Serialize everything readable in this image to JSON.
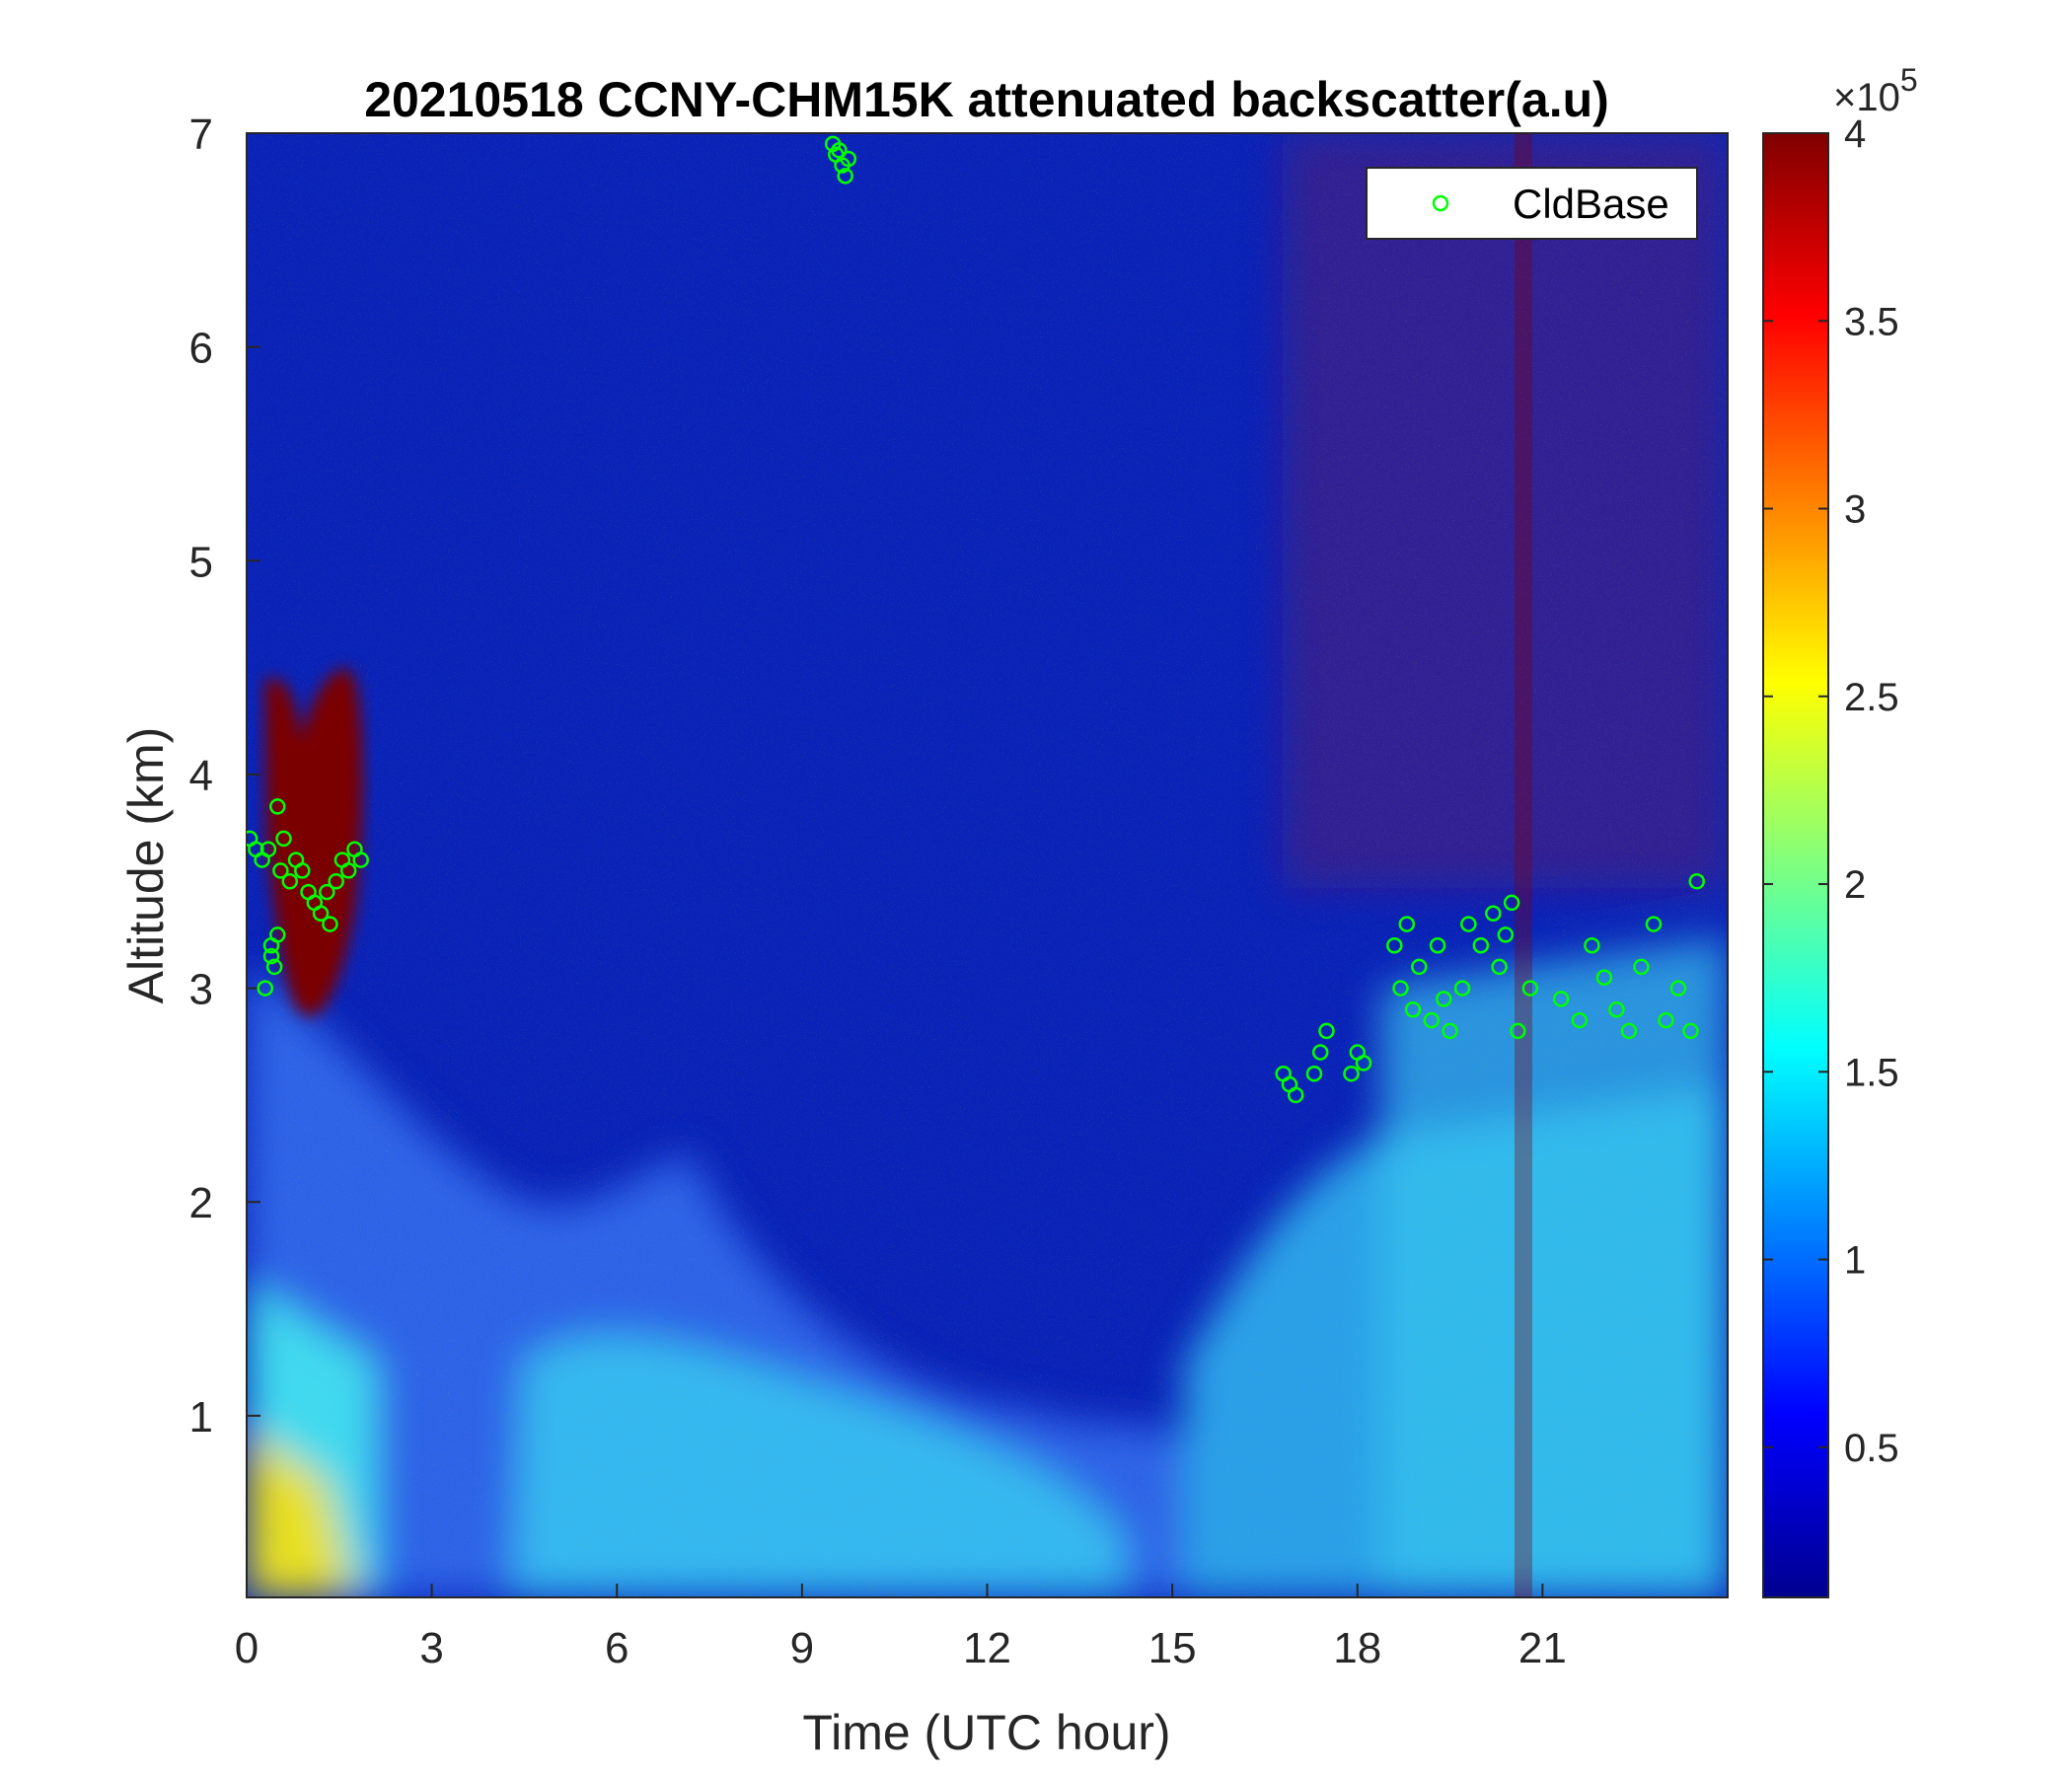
{
  "chart_data": {
    "type": "heatmap",
    "title": "20210518 CCNY-CHM15K attenuated backscatter(a.u)",
    "xlabel": "Time (UTC hour)",
    "ylabel": "Altitude (km)",
    "xlim": [
      0,
      24
    ],
    "ylim": [
      0.15,
      7
    ],
    "x_ticks": [
      0,
      3,
      6,
      9,
      12,
      15,
      18,
      21
    ],
    "x_tick_labels": [
      "0",
      "3",
      "6",
      "9",
      "12",
      "15",
      "18",
      "21"
    ],
    "y_ticks": [
      1,
      2,
      3,
      4,
      5,
      6,
      7
    ],
    "y_tick_labels": [
      "1",
      "2",
      "3",
      "4",
      "5",
      "6",
      "7"
    ],
    "colorbar": {
      "colormap": "jet",
      "clim": [
        0.1,
        4
      ],
      "ticks": [
        0.5,
        1,
        1.5,
        2,
        2.5,
        3,
        3.5,
        4
      ],
      "tick_labels": [
        "0.5",
        "1",
        "1.5",
        "2",
        "2.5",
        "3",
        "3.5",
        "4"
      ],
      "exponent_label": "×10",
      "exponent_power": "5"
    },
    "legend": {
      "position": "top-right",
      "entries": [
        "CldBase"
      ]
    },
    "series": [
      {
        "name": "CldBase",
        "marker": "circle",
        "color": "#00ff00",
        "x": [
          0.05,
          0.15,
          0.25,
          0.35,
          0.4,
          0.45,
          0.5,
          0.55,
          0.6,
          0.7,
          0.8,
          0.9,
          1.0,
          1.1,
          1.2,
          1.3,
          1.35,
          1.45,
          1.55,
          1.65,
          1.75,
          1.85,
          0.3,
          0.4,
          0.5,
          9.5,
          9.55,
          9.6,
          9.65,
          9.7,
          9.75,
          16.8,
          16.9,
          17.0,
          17.3,
          17.4,
          17.5,
          17.9,
          18.0,
          18.1,
          18.6,
          18.7,
          18.8,
          18.9,
          19.0,
          19.2,
          19.3,
          19.4,
          19.5,
          19.7,
          19.8,
          20.0,
          20.2,
          20.3,
          20.4,
          20.5,
          20.6,
          20.8,
          21.3,
          21.6,
          21.8,
          22.0,
          22.2,
          22.4,
          22.6,
          22.8,
          23.0,
          23.2,
          23.4,
          23.5
        ],
        "y": [
          3.7,
          3.65,
          3.6,
          3.65,
          3.2,
          3.1,
          3.85,
          3.55,
          3.7,
          3.5,
          3.6,
          3.55,
          3.45,
          3.4,
          3.35,
          3.45,
          3.3,
          3.5,
          3.6,
          3.55,
          3.65,
          3.6,
          3.0,
          3.15,
          3.25,
          6.95,
          6.9,
          6.92,
          6.85,
          6.8,
          6.88,
          2.6,
          2.55,
          2.5,
          2.6,
          2.7,
          2.8,
          2.6,
          2.7,
          2.65,
          3.2,
          3.0,
          3.3,
          2.9,
          3.1,
          2.85,
          3.2,
          2.95,
          2.8,
          3.0,
          3.3,
          3.2,
          3.35,
          3.1,
          3.25,
          3.4,
          2.8,
          3.0,
          2.95,
          2.85,
          3.2,
          3.05,
          2.9,
          2.8,
          3.1,
          3.3,
          2.85,
          3.0,
          2.8,
          3.5
        ]
      }
    ]
  }
}
